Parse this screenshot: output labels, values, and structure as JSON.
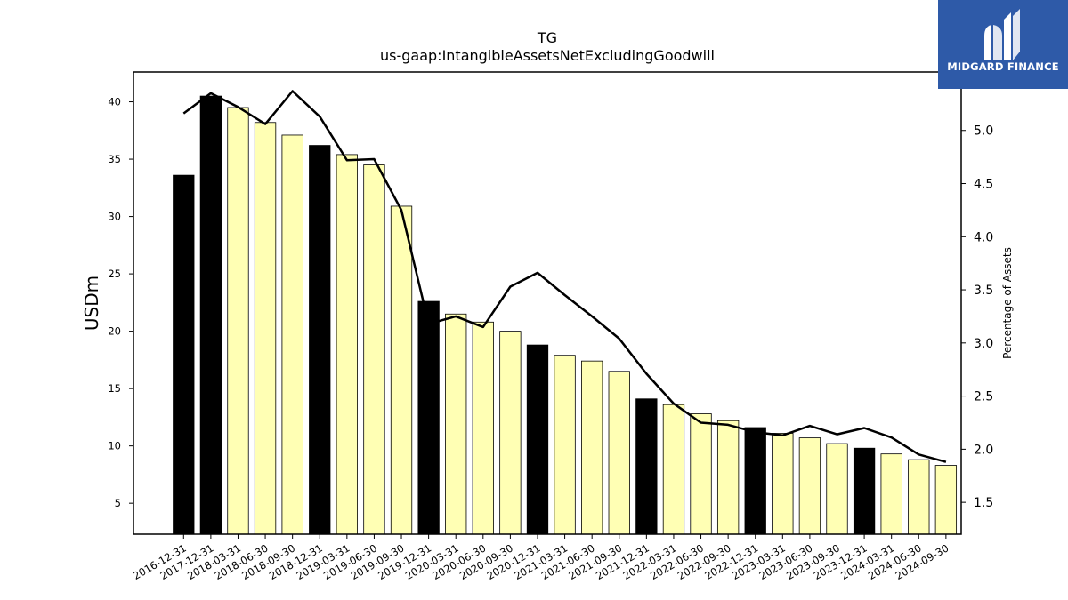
{
  "brand": {
    "name": "MIDGARD FINANCE",
    "background": "#2e5aa8",
    "text_color": "#ffffff",
    "mark_icon": "midgard-m-logo-icon"
  },
  "chart_data": {
    "type": "bar",
    "title": "TG",
    "subtitle": "us-gaap:IntangibleAssetsNetExcludingGoodwill",
    "ylabel": "USDm",
    "y2label": "Percentage of Assets",
    "ylim": [
      2.3,
      42.6
    ],
    "y2lim": [
      1.2,
      5.55
    ],
    "yticks": [
      5,
      10,
      15,
      20,
      25,
      30,
      35,
      40
    ],
    "y2ticks": [
      1.5,
      2.0,
      2.5,
      3.0,
      3.5,
      4.0,
      4.5,
      5.0
    ],
    "categories": [
      "2016-12-31",
      "2017-12-31",
      "2018-03-31",
      "2018-06-30",
      "2018-09-30",
      "2018-12-31",
      "2019-03-31",
      "2019-06-30",
      "2019-09-30",
      "2019-12-31",
      "2020-03-31",
      "2020-06-30",
      "2020-09-30",
      "2020-12-31",
      "2021-03-31",
      "2021-06-30",
      "2021-09-30",
      "2021-12-31",
      "2022-03-31",
      "2022-06-30",
      "2022-09-30",
      "2022-12-31",
      "2023-03-31",
      "2023-06-30",
      "2023-09-30",
      "2023-12-31",
      "2024-03-31",
      "2024-06-30",
      "2024-09-30"
    ],
    "series": [
      {
        "type": "bar",
        "axis": "left",
        "values": [
          33.6,
          40.5,
          39.5,
          38.2,
          37.1,
          36.2,
          35.4,
          34.5,
          30.9,
          22.6,
          21.5,
          20.8,
          20.0,
          18.8,
          17.9,
          17.4,
          16.5,
          14.1,
          13.6,
          12.8,
          12.2,
          11.6,
          11.1,
          10.7,
          10.2,
          9.8,
          9.3,
          8.8,
          8.3
        ]
      },
      {
        "type": "line",
        "axis": "right",
        "values": [
          5.16,
          5.35,
          5.22,
          5.06,
          5.37,
          5.13,
          4.72,
          4.73,
          4.25,
          3.18,
          3.25,
          3.15,
          3.53,
          3.66,
          3.45,
          3.25,
          3.04,
          2.71,
          2.43,
          2.25,
          2.23,
          2.16,
          2.13,
          2.22,
          2.14,
          2.2,
          2.11,
          1.95,
          1.88
        ]
      }
    ],
    "annual_bar_color": "#000000",
    "quarter_bar_color": "#ffffb4",
    "line_color": "#000000",
    "legend": "none",
    "grid": false
  }
}
